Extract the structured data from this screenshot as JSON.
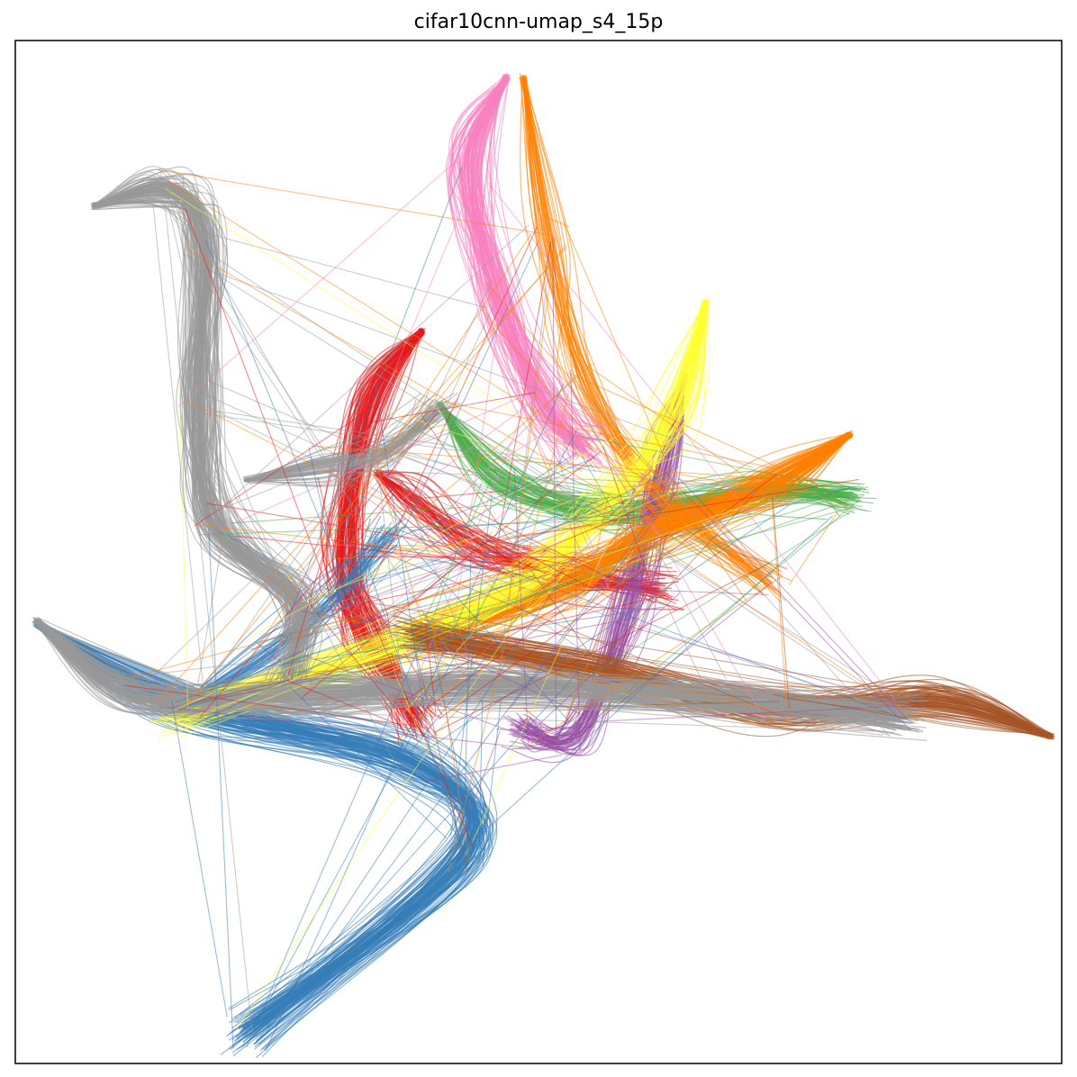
{
  "chart_data": {
    "type": "line",
    "title": "cifar10cnn-umap_s4_15p",
    "xlabel": "",
    "ylabel": "",
    "xticks": [],
    "yticks": [],
    "grid": false,
    "legend": "none",
    "xlim": [
      0,
      100
    ],
    "ylim": [
      0,
      100
    ],
    "series": [
      {
        "color": "#e41a1c",
        "count": 90,
        "values": [
          [
            38.9,
            71.6
          ],
          [
            34.0,
            64.6
          ],
          [
            31.5,
            50.0
          ],
          [
            33.5,
            42.0
          ],
          [
            38.5,
            33.5
          ]
        ]
      },
      {
        "color": "#e41a1c",
        "count": 50,
        "values": [
          [
            34.5,
            57.8
          ],
          [
            38.0,
            55.0
          ],
          [
            44.0,
            50.5
          ],
          [
            52.0,
            48.0
          ],
          [
            62.0,
            46.5
          ]
        ]
      },
      {
        "color": "#377eb8",
        "count": 120,
        "values": [
          [
            2.0,
            43.0
          ],
          [
            16.5,
            35.0
          ],
          [
            38.0,
            29.5
          ],
          [
            43.0,
            20.5
          ],
          [
            22.0,
            3.0
          ]
        ]
      },
      {
        "color": "#377eb8",
        "count": 40,
        "values": [
          [
            16.5,
            35.5
          ],
          [
            24.0,
            40.0
          ],
          [
            31.0,
            46.0
          ],
          [
            36.0,
            52.0
          ]
        ]
      },
      {
        "color": "#4daf4a",
        "count": 70,
        "values": [
          [
            40.5,
            64.5
          ],
          [
            46.5,
            57.0
          ],
          [
            57.0,
            54.0
          ],
          [
            72.0,
            56.0
          ],
          [
            80.0,
            55.5
          ]
        ]
      },
      {
        "color": "#984ea3",
        "count": 60,
        "values": [
          [
            64.0,
            67.5
          ],
          [
            61.5,
            58.0
          ],
          [
            58.5,
            45.0
          ],
          [
            53.5,
            32.0
          ],
          [
            48.0,
            33.0
          ]
        ]
      },
      {
        "color": "#ff7f00",
        "count": 120,
        "values": [
          [
            79.8,
            61.5
          ],
          [
            72.0,
            56.5
          ],
          [
            61.0,
            52.0
          ],
          [
            53.0,
            47.0
          ],
          [
            40.0,
            42.0
          ]
        ]
      },
      {
        "color": "#ff7f00",
        "count": 40,
        "values": [
          [
            48.5,
            96.5
          ],
          [
            51.0,
            81.0
          ],
          [
            54.5,
            66.5
          ],
          [
            62.0,
            55.0
          ],
          [
            72.0,
            47.0
          ]
        ]
      },
      {
        "color": "#ffff33",
        "count": 80,
        "values": [
          [
            66.0,
            74.5
          ],
          [
            63.0,
            64.0
          ],
          [
            57.5,
            55.5
          ],
          [
            48.0,
            47.0
          ],
          [
            35.0,
            40.5
          ],
          [
            15.0,
            34.0
          ]
        ]
      },
      {
        "color": "#a65628",
        "count": 110,
        "values": [
          [
            99.0,
            32.0
          ],
          [
            88.0,
            35.5
          ],
          [
            73.0,
            34.5
          ],
          [
            55.0,
            38.5
          ],
          [
            38.0,
            42.0
          ]
        ]
      },
      {
        "color": "#f781bf",
        "count": 110,
        "values": [
          [
            47.0,
            96.5
          ],
          [
            43.5,
            88.0
          ],
          [
            46.0,
            75.0
          ],
          [
            50.5,
            64.5
          ],
          [
            54.5,
            60.0
          ]
        ]
      },
      {
        "color": "#999999",
        "count": 130,
        "values": [
          [
            7.5,
            83.8
          ],
          [
            15.0,
            85.5
          ],
          [
            18.0,
            80.0
          ],
          [
            17.5,
            65.0
          ],
          [
            19.0,
            53.0
          ],
          [
            27.0,
            45.0
          ],
          [
            26.0,
            38.0
          ]
        ]
      },
      {
        "color": "#999999",
        "count": 130,
        "values": [
          [
            2.0,
            43.3
          ],
          [
            12.0,
            36.0
          ],
          [
            28.0,
            36.0
          ],
          [
            45.0,
            37.0
          ],
          [
            66.0,
            36.0
          ],
          [
            85.0,
            34.0
          ]
        ]
      },
      {
        "color": "#999999",
        "count": 60,
        "values": [
          [
            22.0,
            57.0
          ],
          [
            30.0,
            58.5
          ],
          [
            35.0,
            59.5
          ],
          [
            40.5,
            64.0
          ]
        ]
      }
    ]
  }
}
